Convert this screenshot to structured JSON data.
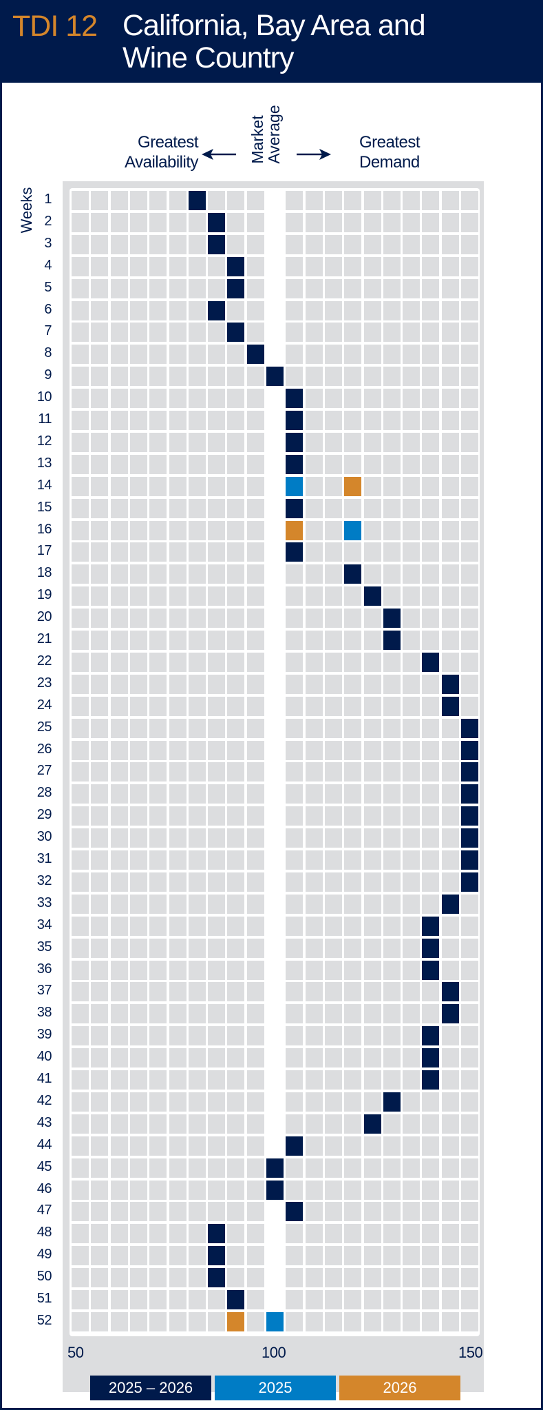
{
  "header": {
    "code": "TDI 12",
    "title_line1": "California, Bay Area and",
    "title_line2": "Wine Country"
  },
  "colors": {
    "navy": "#001a4b",
    "blue": "#007cc5",
    "orange": "#d4862b",
    "cell": "#dcdddf"
  },
  "chart_data": {
    "type": "heatmap",
    "title": "TDI 12 California, Bay Area and Wine Country",
    "ylabel": "Weeks",
    "x_left_label_line1": "Greatest",
    "x_left_label_line2": "Availability",
    "x_center_label_line1": "Market",
    "x_center_label_line2": "Average",
    "x_right_label_line1": "Greatest",
    "x_right_label_line2": "Demand",
    "xlim": [
      50,
      150
    ],
    "x_step": 5,
    "x_ticks": [
      "50",
      "100",
      "150"
    ],
    "weeks": [
      1,
      2,
      3,
      4,
      5,
      6,
      7,
      8,
      9,
      10,
      11,
      12,
      13,
      14,
      15,
      16,
      17,
      18,
      19,
      20,
      21,
      22,
      23,
      24,
      25,
      26,
      27,
      28,
      29,
      30,
      31,
      32,
      33,
      34,
      35,
      36,
      37,
      38,
      39,
      40,
      41,
      42,
      43,
      44,
      45,
      46,
      47,
      48,
      49,
      50,
      51,
      52
    ],
    "series": [
      {
        "name": "2025 – 2026",
        "color": "#001a4b",
        "values": [
          80,
          85,
          85,
          90,
          90,
          85,
          90,
          95,
          100,
          105,
          105,
          105,
          105,
          null,
          105,
          null,
          105,
          120,
          125,
          130,
          130,
          140,
          145,
          145,
          150,
          150,
          150,
          150,
          150,
          150,
          150,
          150,
          145,
          140,
          140,
          140,
          145,
          145,
          140,
          140,
          140,
          130,
          125,
          105,
          100,
          100,
          105,
          85,
          85,
          85,
          90,
          null
        ]
      },
      {
        "name": "2025",
        "color": "#007cc5",
        "values": {
          "14": 105,
          "16": 120,
          "52": 100
        }
      },
      {
        "name": "2026",
        "color": "#d4862b",
        "values": {
          "14": 120,
          "16": 105,
          "52": 90
        }
      }
    ],
    "legend": [
      "2025 – 2026",
      "2025",
      "2026"
    ],
    "legend_placement": "bottom"
  }
}
